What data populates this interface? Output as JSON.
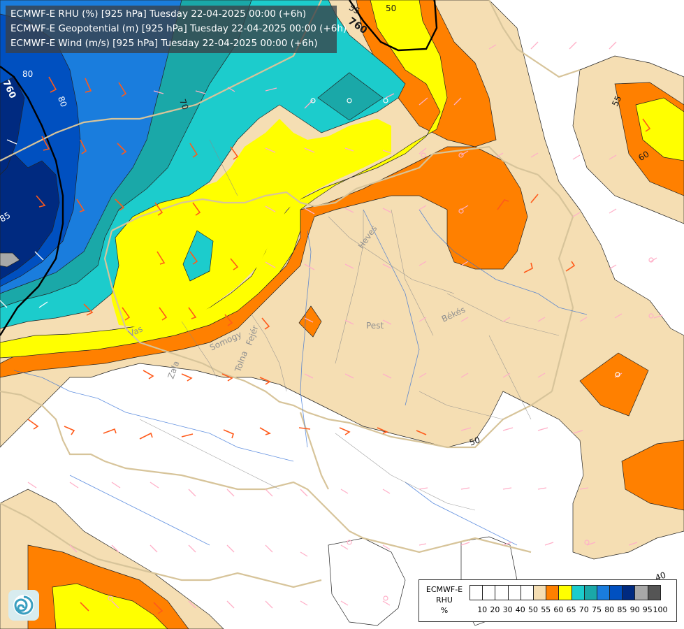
{
  "header": {
    "lines": [
      "ECMWF-E RHU (%) [925 hPa] Tuesday 22-04-2025 00:00 (+6h)",
      "ECMWF-E Geopotential (m) [925 hPa] Tuesday 22-04-2025 00:00 (+6h)",
      "ECMWF-E Wind (m/s) [925 hPa] Tuesday 22-04-2025 00:00 (+6h)"
    ]
  },
  "legend": {
    "title_lines": [
      "ECMWF-E",
      "RHU",
      "%"
    ],
    "levels": [
      "10",
      "20",
      "30",
      "40",
      "50",
      "55",
      "60",
      "65",
      "70",
      "75",
      "80",
      "85",
      "90",
      "95",
      "100"
    ],
    "colors": [
      "#ffffff",
      "#ffffff",
      "#ffffff",
      "#ffffff",
      "#ffffff",
      "#f5deb3",
      "#ff8000",
      "#ffff00",
      "#1ccccc",
      "#1aa8a8",
      "#1a7ddd",
      "#0050c0",
      "#002a80",
      "#a8a8a8",
      "#555555"
    ]
  },
  "map": {
    "contour_labels": [
      {
        "text": "50",
        "id": "c50a"
      },
      {
        "text": "55",
        "id": "c55a"
      },
      {
        "text": "760",
        "id": "g760a"
      },
      {
        "text": "80",
        "id": "c80a"
      },
      {
        "text": "760",
        "id": "g760b"
      },
      {
        "text": "80",
        "id": "c80b"
      },
      {
        "text": "70",
        "id": "c70a"
      },
      {
        "text": "85",
        "id": "c85a"
      },
      {
        "text": "55",
        "id": "c55b"
      },
      {
        "text": "60",
        "id": "c60a"
      },
      {
        "text": "50",
        "id": "c50b"
      },
      {
        "text": "40",
        "id": "c40a"
      }
    ],
    "place_labels": [
      "Heves",
      "Pest",
      "Békés",
      "Vas",
      "Somogy",
      "Fejér",
      "Zala",
      "Tolna"
    ],
    "colors": {
      "white": "#ffffff",
      "wheat": "#f5deb3",
      "orange": "#ff8000",
      "yellow": "#ffff00",
      "cyan": "#1ccccc",
      "teal": "#1aa8a8",
      "blue": "#1a7ddd",
      "darkblue": "#0050c0",
      "navy": "#002a80"
    }
  }
}
